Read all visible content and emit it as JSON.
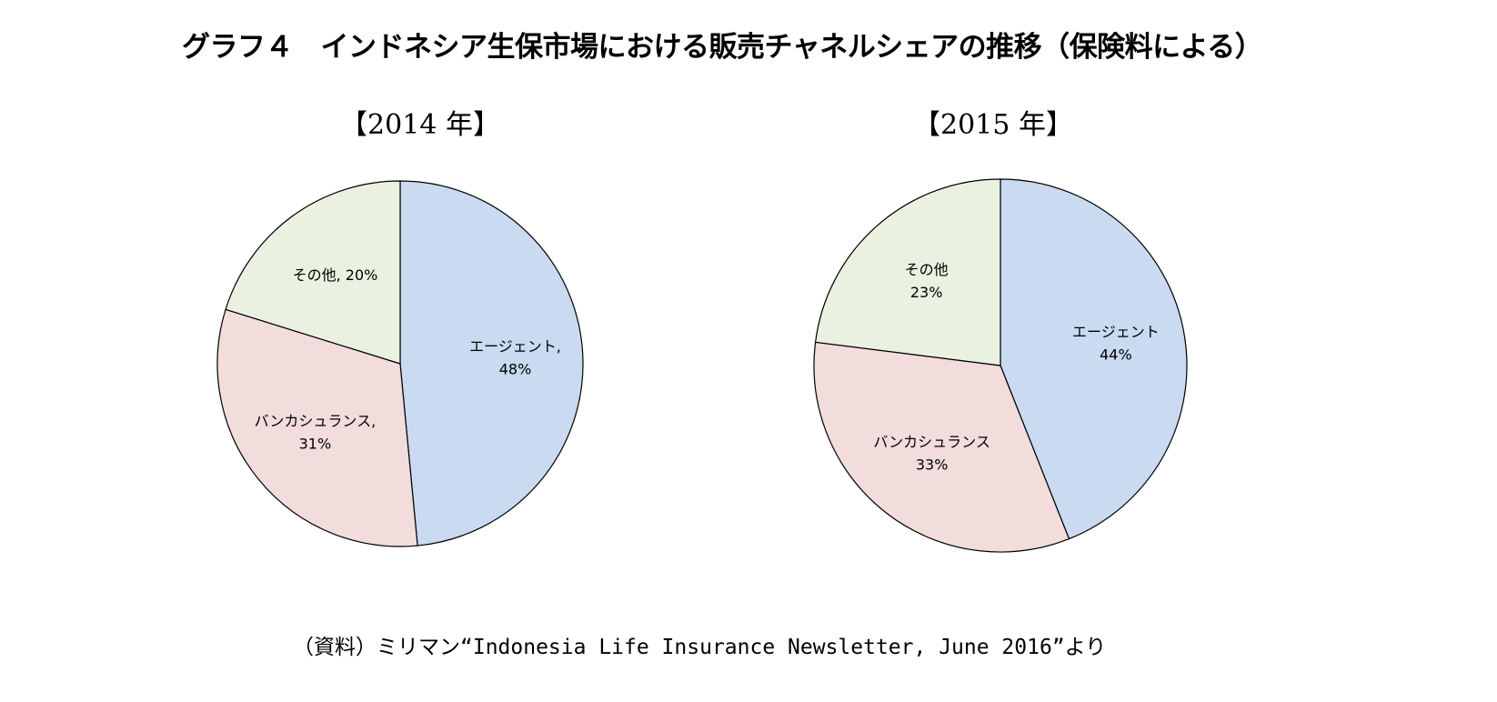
{
  "title": "グラフ４　インドネシア生保市場における販売チャネルシェアの推移（保険料による）",
  "source": "（資料）ミリマン“Indonesia Life Insurance Newsletter, June 2016”より",
  "colors": {
    "agent": "#c9daf1",
    "bancassurance": "#f2dcdc",
    "other": "#ebf1e0",
    "stroke": "#000000"
  },
  "chart_data": [
    {
      "type": "pie",
      "title": "【2014 年】",
      "categories": [
        "エージェント",
        "バンカシュランス",
        "その他"
      ],
      "values": [
        48,
        31,
        20
      ],
      "labels": [
        {
          "lines": [
            "エージェント,",
            "48%"
          ]
        },
        {
          "lines": [
            "バンカシュランス,",
            "31%"
          ]
        },
        {
          "lines": [
            "その他, 20%"
          ]
        }
      ]
    },
    {
      "type": "pie",
      "title": "【2015 年】",
      "categories": [
        "エージェント",
        "バンカシュランス",
        "その他"
      ],
      "values": [
        44,
        33,
        23
      ],
      "labels": [
        {
          "lines": [
            "エージェント",
            "44%"
          ]
        },
        {
          "lines": [
            "バンカシュランス",
            "33%"
          ]
        },
        {
          "lines": [
            "その他",
            "23%"
          ]
        }
      ]
    }
  ]
}
